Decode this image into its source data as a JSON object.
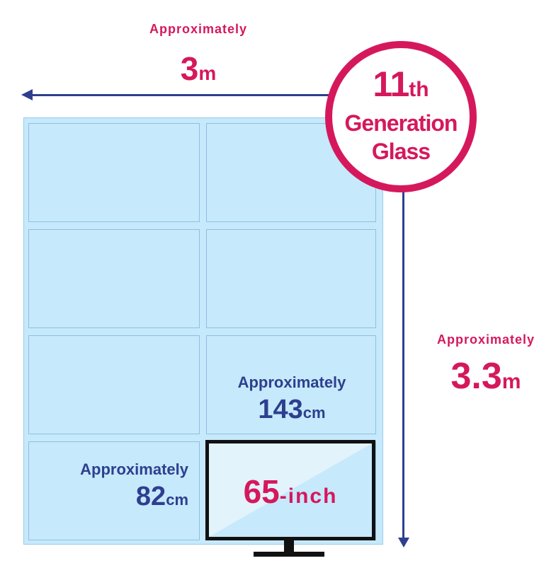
{
  "badge": {
    "number": "11",
    "suffix": "th",
    "line2": "Generation",
    "line3": "Glass"
  },
  "width_dimension": {
    "approx": "Approximately",
    "value": "3",
    "unit": "m"
  },
  "height_dimension": {
    "approx": "Approximately",
    "value": "3.3",
    "unit": "m"
  },
  "tv_width": {
    "approx": "Approximately",
    "value": "143",
    "unit": "cm"
  },
  "tv_height": {
    "approx": "Approximately",
    "value": "82",
    "unit": "cm"
  },
  "tv": {
    "size": "65",
    "unit": "-inch"
  },
  "grid": {
    "rows": 4,
    "columns": 2
  },
  "colors": {
    "accent": "#d5185c",
    "navy": "#2e3f8f",
    "glass": "#c6e9fb",
    "tv_screen": "#e2f3fc"
  }
}
